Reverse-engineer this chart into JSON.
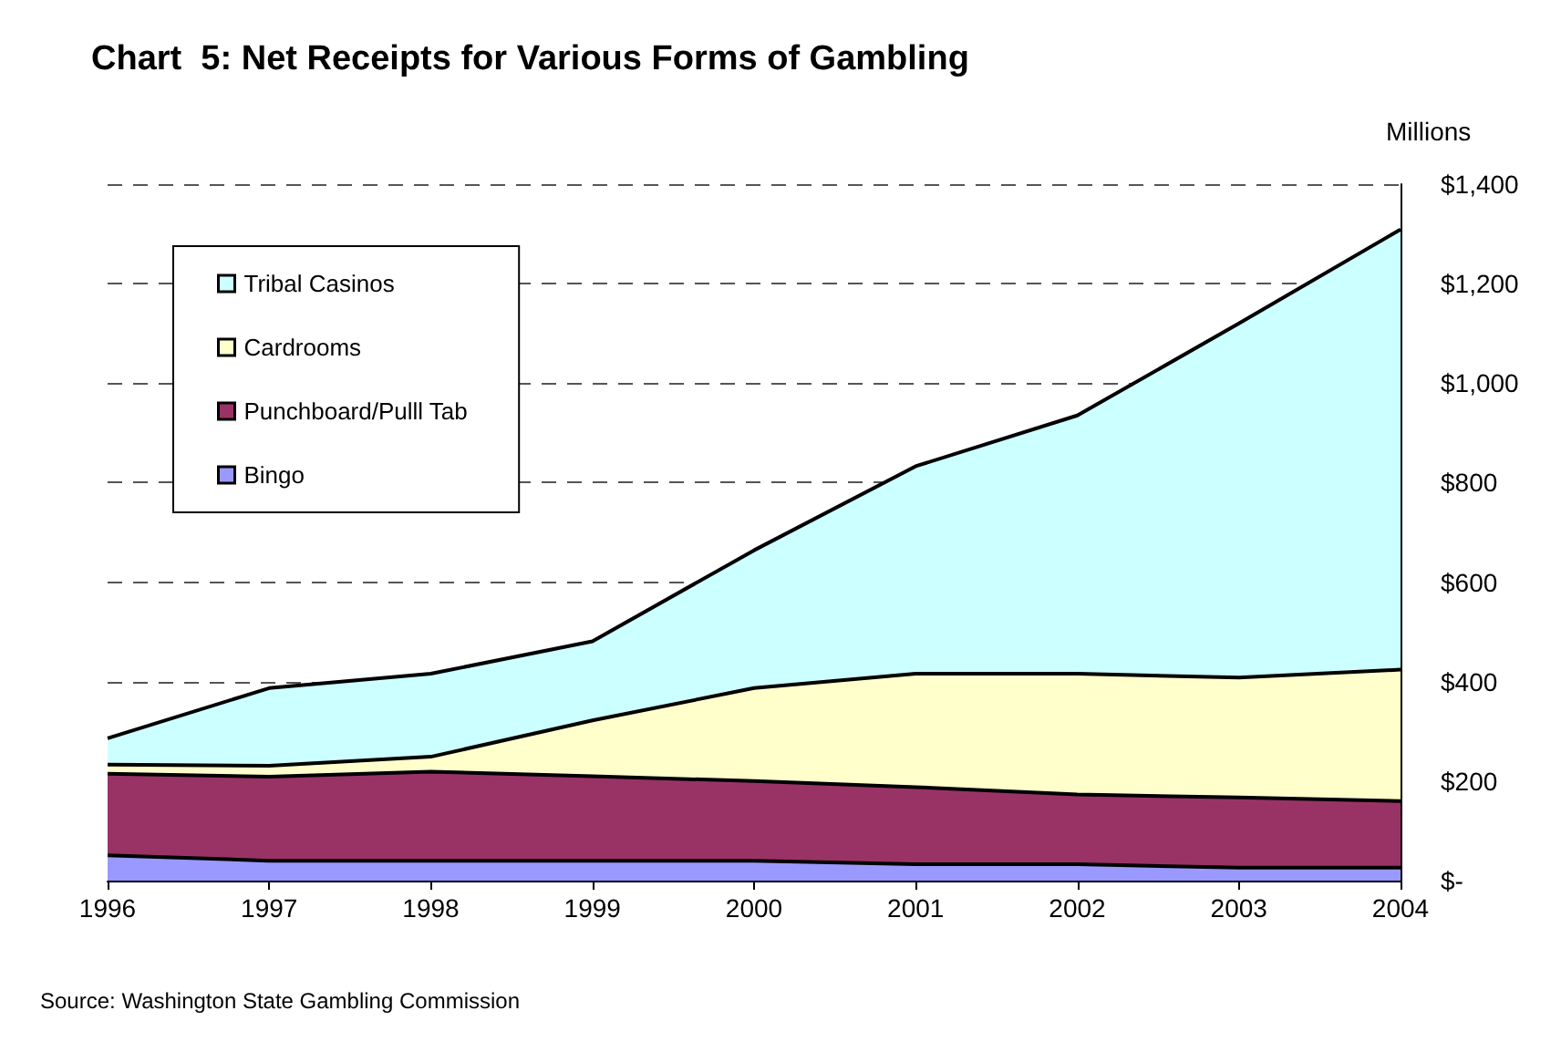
{
  "chart_data": {
    "type": "area",
    "stacked": true,
    "title": "Chart  5: Net Receipts for Various Forms of Gambling",
    "ylabel": "Millions",
    "annotations": [
      "Source: Washington State Gambling Commission"
    ],
    "categories": [
      "1996",
      "1997",
      "1998",
      "1999",
      "2000",
      "2001",
      "2002",
      "2003",
      "2004"
    ],
    "series": [
      {
        "name": "Bingo",
        "color": "#9999ff",
        "values": [
          51,
          40,
          40,
          40,
          40,
          33,
          33,
          26,
          26
        ]
      },
      {
        "name": "Punchboard/Pulll Tab",
        "color": "#993366",
        "values": [
          164,
          169,
          179,
          170,
          160,
          155,
          140,
          141,
          134
        ]
      },
      {
        "name": "Cardrooms",
        "color": "#ffffcc",
        "values": [
          18,
          22,
          30,
          112,
          187,
          228,
          243,
          241,
          264
        ]
      },
      {
        "name": "Tribal Casinos",
        "color": "#ccffff",
        "values": [
          53,
          156,
          167,
          159,
          277,
          417,
          519,
          712,
          885
        ]
      }
    ],
    "ylim": [
      0,
      1400
    ],
    "yticks": [
      {
        "value": 0,
        "label": "$-"
      },
      {
        "value": 200,
        "label": "$200"
      },
      {
        "value": 400,
        "label": "$400"
      },
      {
        "value": 600,
        "label": "$600"
      },
      {
        "value": 800,
        "label": "$800"
      },
      {
        "value": 1000,
        "label": "$1,000"
      },
      {
        "value": 1200,
        "label": "$1,200"
      },
      {
        "value": 1400,
        "label": "$1,400"
      }
    ],
    "grid": "y",
    "legend": "top left",
    "line_style": "solid",
    "marker": "none"
  }
}
